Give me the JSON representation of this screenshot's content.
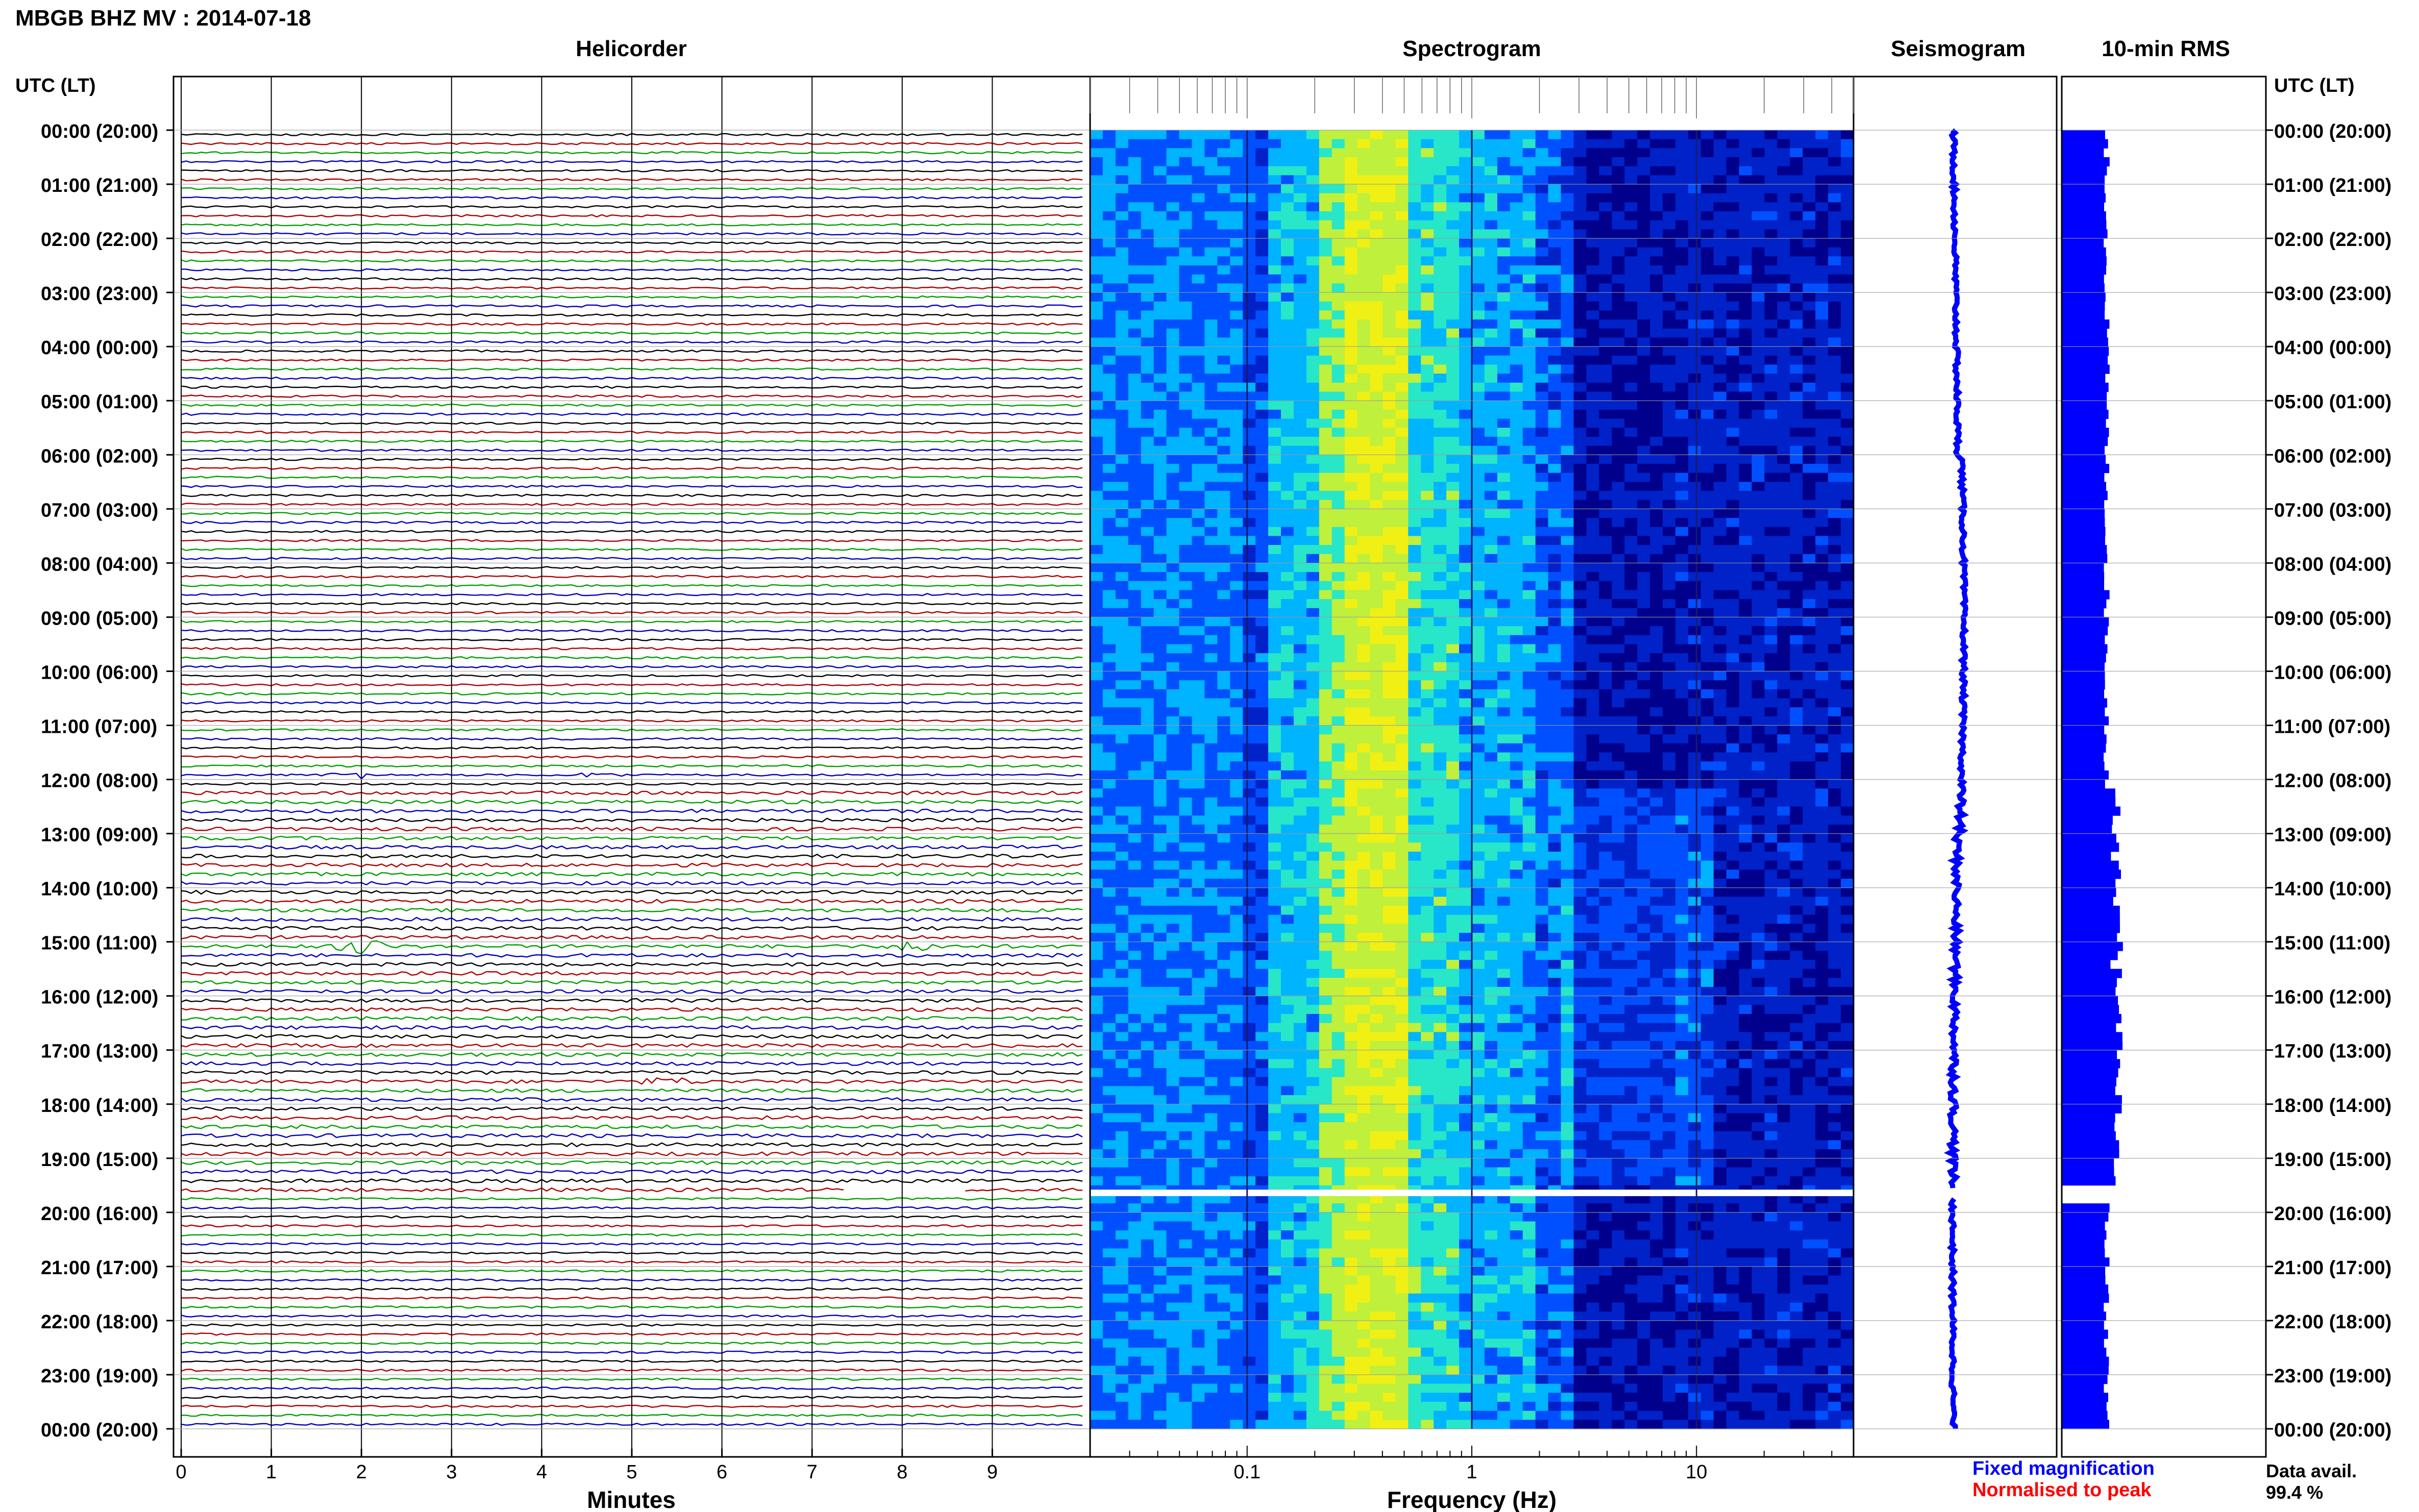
{
  "title": "MBGB BHZ MV : 2014-07-18",
  "panels": {
    "helicorder": "Helicorder",
    "spectrogram": "Spectrogram",
    "seismogram": "Seismogram",
    "rms": "10-min RMS"
  },
  "time_axis_label": "UTC (LT)",
  "hour_labels": [
    "00:00 (20:00)",
    "01:00 (21:00)",
    "02:00 (22:00)",
    "03:00 (23:00)",
    "04:00 (00:00)",
    "05:00 (01:00)",
    "06:00 (02:00)",
    "07:00 (03:00)",
    "08:00 (04:00)",
    "09:00 (05:00)",
    "10:00 (06:00)",
    "11:00 (07:00)",
    "12:00 (08:00)",
    "13:00 (09:00)",
    "14:00 (10:00)",
    "15:00 (11:00)",
    "16:00 (12:00)",
    "17:00 (13:00)",
    "18:00 (14:00)",
    "19:00 (15:00)",
    "20:00 (16:00)",
    "21:00 (17:00)",
    "22:00 (18:00)",
    "23:00 (19:00)",
    "00:00 (20:00)"
  ],
  "legend": {
    "fixed": "Fixed magnification",
    "normalised": "Normalised to peak",
    "fixed_color": "#0000ff",
    "normalised_color": "#ff0000"
  },
  "data_avail": {
    "label": "Data avail.",
    "value": "99.4 %"
  },
  "chart_data": [
    {
      "type": "line",
      "panel": "Helicorder",
      "xlabel": "Minutes",
      "x_ticks": [
        "0",
        "1",
        "2",
        "3",
        "4",
        "5",
        "6",
        "7",
        "8",
        "9"
      ],
      "xlim": [
        0,
        10
      ],
      "ylim_hours": [
        0,
        24
      ],
      "trace_interval_min": 10,
      "trace_colors": [
        "#000000",
        "#b00000",
        "#00a000",
        "#0000c0"
      ],
      "events": [
        {
          "hour": 11.83,
          "minute": 1.9,
          "amplitude": 4,
          "color": "#00a000"
        },
        {
          "hour": 11.83,
          "minute": 4.65,
          "amplitude": 2.5,
          "color": "#000000"
        },
        {
          "hour": 15.0,
          "minute": 2.0,
          "amplitude": 5,
          "color": "#0000c0"
        },
        {
          "hour": 15.0,
          "minute": 8.15,
          "amplitude": 3,
          "color": "#0000c0"
        },
        {
          "hour": 17.5,
          "minute": 5.4,
          "amplitude": 2.5,
          "color": "#b00000"
        }
      ],
      "data_gap": {
        "start_hour": 19.5,
        "end_hour": 19.75
      }
    },
    {
      "type": "heatmap",
      "panel": "Spectrogram",
      "xlabel": "Frequency (Hz)",
      "x_scale": "log",
      "xlim": [
        0.02,
        50
      ],
      "x_ticks": [
        "0.1",
        "1",
        "10"
      ],
      "colors": [
        "#00008c",
        "#0022c8",
        "#0050ff",
        "#00b4ff",
        "#28e6c8",
        "#bef03c",
        "#f0f014"
      ],
      "peak_band_hz": [
        0.25,
        0.45
      ],
      "gap_hours": [
        19.58,
        19.7
      ]
    },
    {
      "type": "line",
      "panel": "Seismogram",
      "ylim_hours": [
        0,
        24
      ],
      "series": [
        {
          "name": "Fixed magnification",
          "color": "#0000ff"
        }
      ]
    },
    {
      "type": "bar",
      "panel": "10-min RMS",
      "ylim_hours": [
        0,
        24
      ],
      "bin_minutes": 10,
      "color": "#0000ff",
      "baseline_width_fraction": 0.22
    }
  ]
}
